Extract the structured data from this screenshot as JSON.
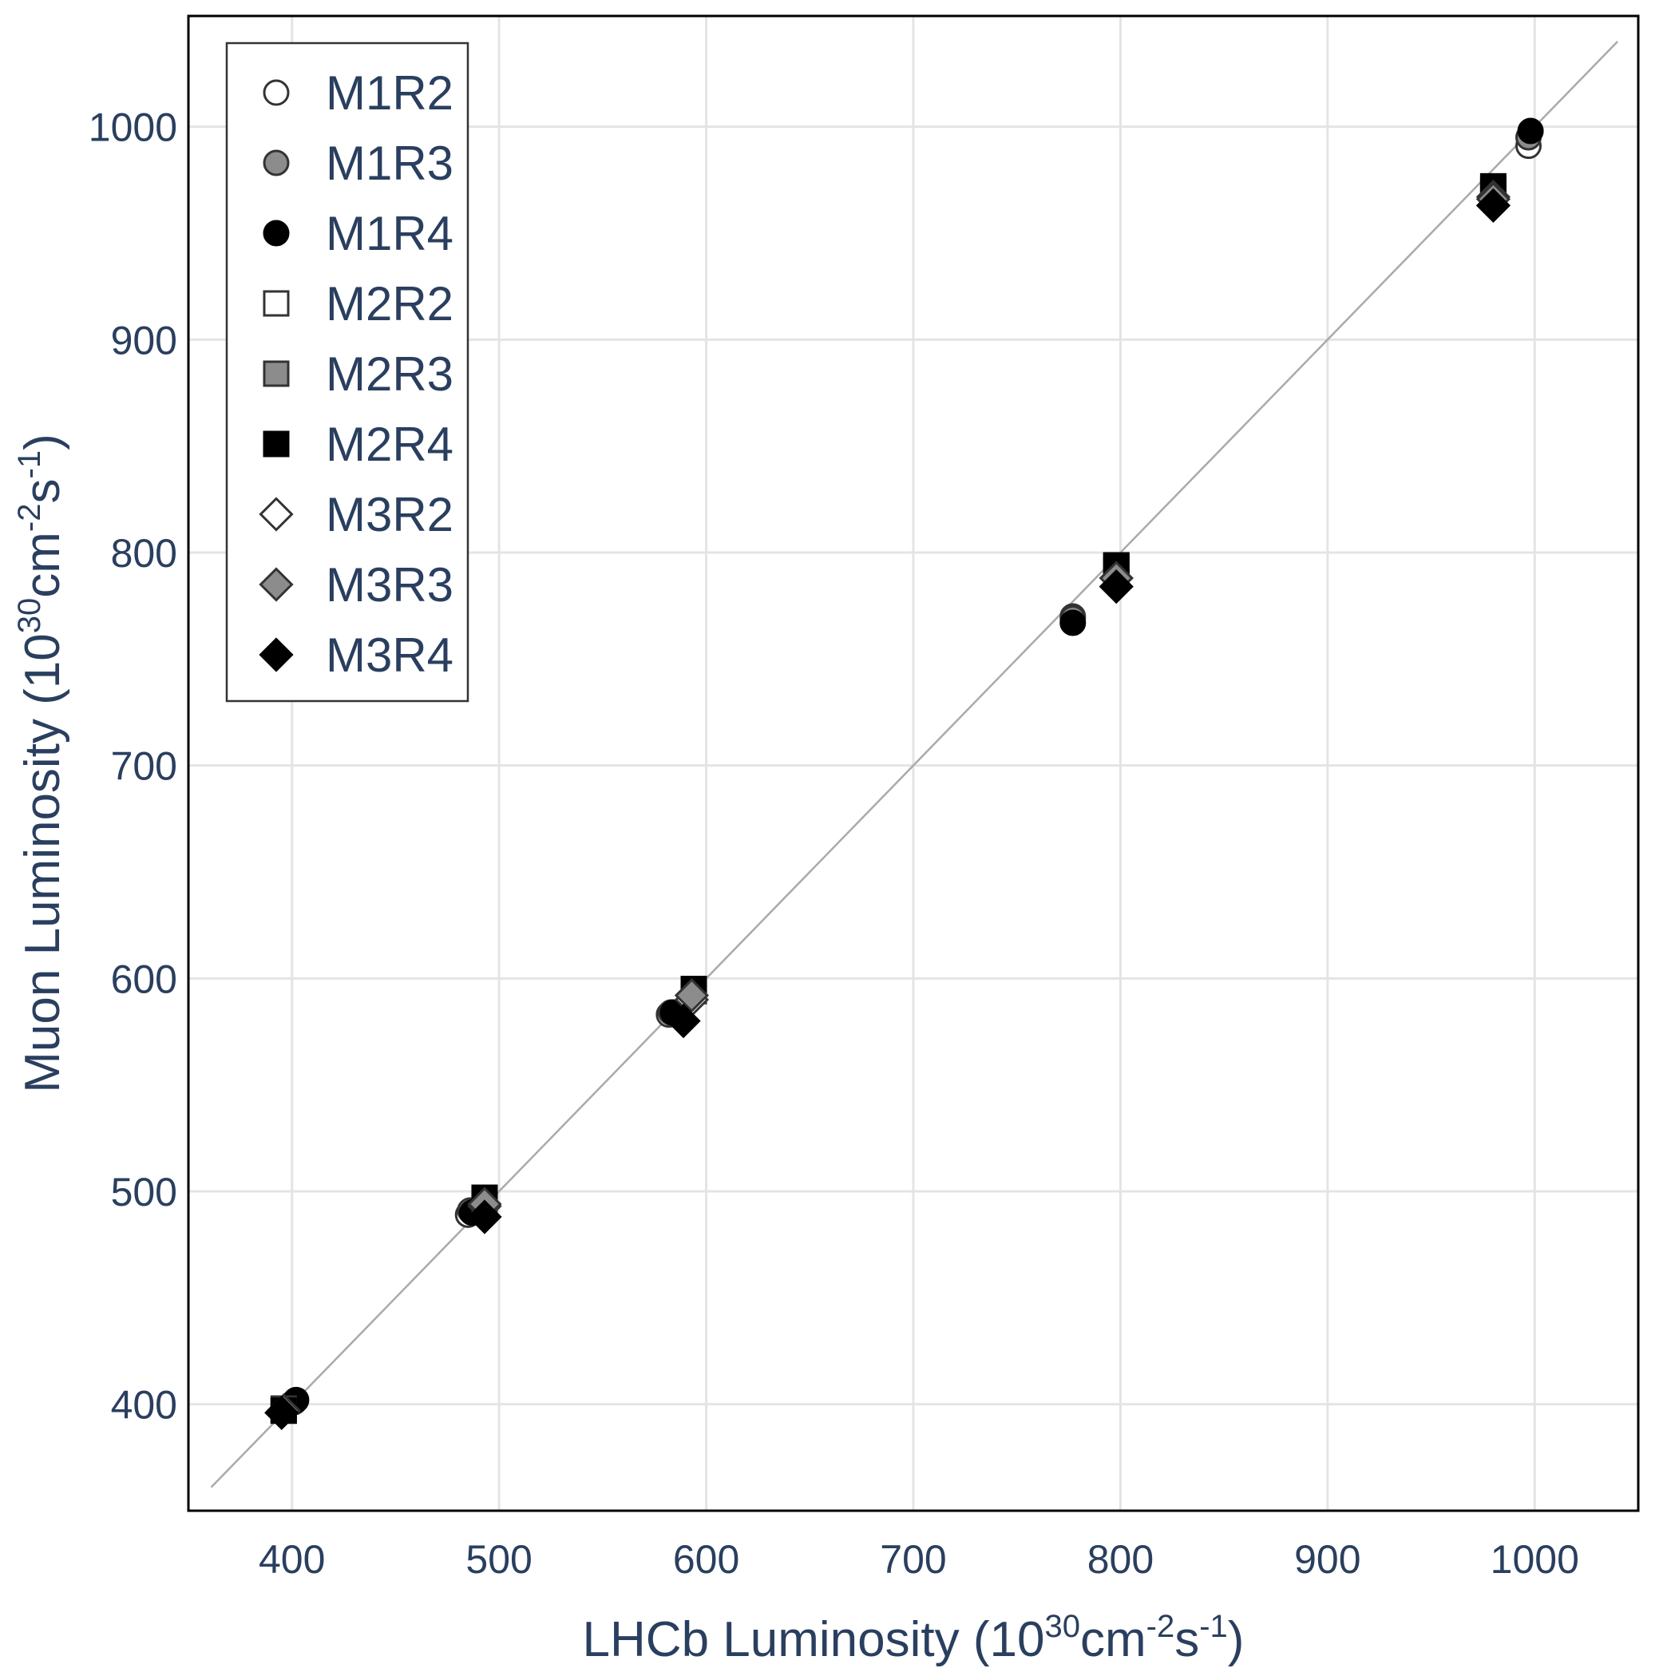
{
  "chart_data": {
    "type": "scatter",
    "xlabel": {
      "prefix": "LHCb Luminosity (10",
      "exp1": "30",
      "mid": "cm",
      "exp2": "-2",
      "s": "s",
      "exp3": "-1",
      "suffix": ")"
    },
    "ylabel": {
      "prefix": "Muon Luminosity (10",
      "exp1": "30",
      "mid": "cm",
      "exp2": "-2",
      "s": "s",
      "exp3": "-1",
      "suffix": ")"
    },
    "xlim": [
      350,
      1050
    ],
    "ylim": [
      350,
      1052
    ],
    "xticks": [
      400,
      500,
      600,
      700,
      800,
      900,
      1000
    ],
    "yticks": [
      400,
      500,
      600,
      700,
      800,
      900,
      1000
    ],
    "xtick_labels": [
      "400",
      "500",
      "600",
      "700",
      "800",
      "900",
      "1000"
    ],
    "ytick_labels": [
      "400",
      "500",
      "600",
      "700",
      "800",
      "900",
      "1000"
    ],
    "grid": true,
    "legend_position": "top-left",
    "reference_line": {
      "x": [
        361,
        1040
      ],
      "y": [
        361,
        1040
      ]
    },
    "series": [
      {
        "name": "M1R2",
        "marker": "circle",
        "fill": "#ffffff",
        "x": [
          401,
          485,
          582,
          777,
          997
        ],
        "y": [
          401,
          489,
          583,
          770,
          991
        ]
      },
      {
        "name": "M1R3",
        "marker": "circle",
        "fill": "#8c8c8c",
        "x": [
          401,
          486,
          583,
          777,
          997
        ],
        "y": [
          401,
          491,
          584,
          769,
          995
        ]
      },
      {
        "name": "M1R4",
        "marker": "circle",
        "fill": "#000000",
        "x": [
          402,
          487,
          584,
          777,
          998
        ],
        "y": [
          402,
          490,
          584,
          767,
          998
        ]
      },
      {
        "name": "M2R2",
        "marker": "square",
        "fill": "#ffffff",
        "x": [
          396,
          493,
          594,
          798,
          980
        ],
        "y": [
          398,
          497,
          595,
          794,
          971
        ]
      },
      {
        "name": "M2R3",
        "marker": "square",
        "fill": "#8c8c8c",
        "x": [
          396,
          493,
          594,
          798,
          980
        ],
        "y": [
          397,
          496,
          594,
          792,
          970
        ]
      },
      {
        "name": "M2R4",
        "marker": "square",
        "fill": "#000000",
        "x": [
          396,
          493,
          594,
          798,
          980
        ],
        "y": [
          397,
          497,
          595,
          794,
          972
        ]
      },
      {
        "name": "M3R2",
        "marker": "diamond",
        "fill": "#ffffff",
        "x": [
          396,
          493,
          593,
          798,
          980
        ],
        "y": [
          397,
          493,
          590,
          788,
          967
        ]
      },
      {
        "name": "M3R3",
        "marker": "diamond",
        "fill": "#8c8c8c",
        "x": [
          396,
          493,
          593,
          798,
          980
        ],
        "y": [
          397,
          494,
          592,
          788,
          966
        ]
      },
      {
        "name": "M3R4",
        "marker": "diamond",
        "fill": "#000000",
        "x": [
          395,
          493,
          589,
          798,
          980
        ],
        "y": [
          396,
          488,
          580,
          784,
          963
        ]
      }
    ]
  }
}
